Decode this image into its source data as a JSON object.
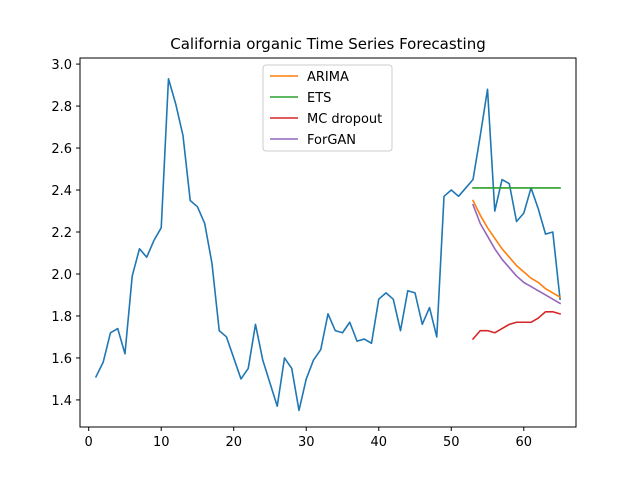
{
  "chart_data": {
    "type": "line",
    "title": "California organic Time Series Forecasting",
    "xlabel": "",
    "ylabel": "",
    "xlim": [
      -1.2,
      67.2
    ],
    "ylim": [
      1.271,
      3.029
    ],
    "xticks": [
      0,
      10,
      20,
      30,
      40,
      50,
      60
    ],
    "yticks": [
      1.4,
      1.6,
      1.8,
      2.0,
      2.2,
      2.4,
      2.6,
      2.8,
      3.0
    ],
    "ytick_labels": [
      "1.4",
      "1.6",
      "1.8",
      "2.0",
      "2.2",
      "2.4",
      "2.6",
      "2.8",
      "3.0"
    ],
    "grid": false,
    "legend_position": "upper-center",
    "series": [
      {
        "name": "",
        "color": "#1f77b4",
        "x": [
          1,
          2,
          3,
          4,
          5,
          6,
          7,
          8,
          9,
          10,
          11,
          12,
          13,
          14,
          15,
          16,
          17,
          18,
          19,
          20,
          21,
          22,
          23,
          24,
          25,
          26,
          27,
          28,
          29,
          30,
          31,
          32,
          33,
          34,
          35,
          36,
          37,
          38,
          39,
          40,
          41,
          42,
          43,
          44,
          45,
          46,
          47,
          48,
          49,
          50,
          51,
          52,
          53,
          54,
          55,
          56,
          57,
          58,
          59,
          60,
          61,
          62,
          63,
          64,
          65
        ],
        "values": [
          1.51,
          1.58,
          1.72,
          1.74,
          1.62,
          1.99,
          2.12,
          2.08,
          2.16,
          2.22,
          2.93,
          2.81,
          2.66,
          2.35,
          2.32,
          2.24,
          2.05,
          1.73,
          1.7,
          1.6,
          1.5,
          1.55,
          1.76,
          1.59,
          1.48,
          1.37,
          1.6,
          1.55,
          1.35,
          1.5,
          1.59,
          1.64,
          1.81,
          1.73,
          1.72,
          1.77,
          1.68,
          1.69,
          1.67,
          1.88,
          1.91,
          1.88,
          1.73,
          1.92,
          1.91,
          1.76,
          1.84,
          1.7,
          2.37,
          2.4,
          2.37,
          2.41,
          2.45,
          2.66,
          2.88,
          2.3,
          2.45,
          2.43,
          2.25,
          2.29,
          2.41,
          2.31,
          2.19,
          2.2,
          1.88
        ]
      },
      {
        "name": "ARIMA",
        "color": "#ff7f0e",
        "x": [
          53,
          54,
          55,
          56,
          57,
          58,
          59,
          60,
          61,
          62,
          63,
          64,
          65
        ],
        "values": [
          2.35,
          2.28,
          2.22,
          2.17,
          2.12,
          2.08,
          2.04,
          2.01,
          1.98,
          1.96,
          1.93,
          1.91,
          1.89
        ]
      },
      {
        "name": "ETS",
        "color": "#2ca02c",
        "x": [
          53,
          54,
          55,
          56,
          57,
          58,
          59,
          60,
          61,
          62,
          63,
          64,
          65
        ],
        "values": [
          2.41,
          2.41,
          2.41,
          2.41,
          2.41,
          2.41,
          2.41,
          2.41,
          2.41,
          2.41,
          2.41,
          2.41,
          2.41
        ]
      },
      {
        "name": "MC dropout",
        "color": "#d62728",
        "x": [
          53,
          54,
          55,
          56,
          57,
          58,
          59,
          60,
          61,
          62,
          63,
          64,
          65
        ],
        "values": [
          1.69,
          1.73,
          1.73,
          1.72,
          1.74,
          1.76,
          1.77,
          1.77,
          1.77,
          1.79,
          1.82,
          1.82,
          1.81
        ]
      },
      {
        "name": "ForGAN",
        "color": "#9467bd",
        "x": [
          53,
          54,
          55,
          56,
          57,
          58,
          59,
          60,
          61,
          62,
          63,
          64,
          65
        ],
        "values": [
          2.33,
          2.24,
          2.18,
          2.12,
          2.07,
          2.03,
          1.99,
          1.96,
          1.94,
          1.92,
          1.9,
          1.88,
          1.86
        ]
      }
    ]
  }
}
